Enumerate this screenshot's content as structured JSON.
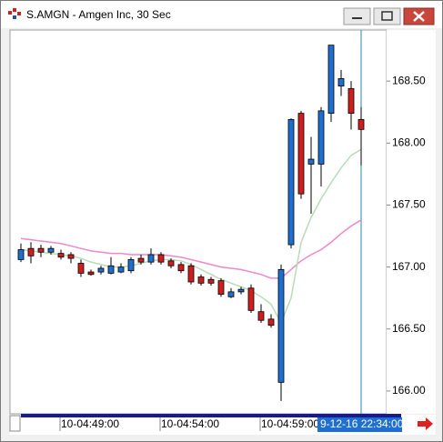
{
  "window": {
    "title": "S.AMGN - Amgen Inc, 30 Sec"
  },
  "chart_data": {
    "type": "candlestick",
    "categories": [
      null,
      null,
      null,
      null,
      "10-04:49:00",
      null,
      null,
      null,
      null,
      null,
      null,
      null,
      null,
      null,
      "10-04:54:00",
      null,
      null,
      null,
      null,
      null,
      null,
      null,
      null,
      null,
      "10-04:59:00",
      null,
      null,
      null,
      null,
      null,
      null,
      null,
      null,
      null,
      null
    ],
    "cursor_label": "9-12-16 22:34:00",
    "up_color": "#1e6fd0",
    "down_color": "#d01e1e",
    "open": [
      167.06,
      167.15,
      167.15,
      167.12,
      167.11,
      167.1,
      167.03,
      166.96,
      166.96,
      166.95,
      166.96,
      166.97,
      167.07,
      167.04,
      167.1,
      167.05,
      167.02,
      167.01,
      166.92,
      166.9,
      166.89,
      166.76,
      166.8,
      166.83,
      166.64,
      166.58,
      166.07,
      167.18,
      168.24,
      167.83,
      167.83,
      168.24,
      168.46,
      168.44,
      168.19
    ],
    "high": [
      167.19,
      167.2,
      167.18,
      167.17,
      167.14,
      167.12,
      167.06,
      166.98,
      167.01,
      167.08,
      167.03,
      167.08,
      167.1,
      167.15,
      167.12,
      167.07,
      167.04,
      167.03,
      166.94,
      166.92,
      166.91,
      166.83,
      166.84,
      166.86,
      166.7,
      166.62,
      167.02,
      168.2,
      168.26,
      168.05,
      168.29,
      168.79,
      168.59,
      168.5,
      168.29
    ],
    "low": [
      167.04,
      167.03,
      167.08,
      167.1,
      167.06,
      167.03,
      166.92,
      166.93,
      166.94,
      166.94,
      166.95,
      166.95,
      167.02,
      167.02,
      167.02,
      166.99,
      166.95,
      166.86,
      166.85,
      166.85,
      166.76,
      166.75,
      166.78,
      166.63,
      166.55,
      166.51,
      165.92,
      167.15,
      167.55,
      167.43,
      167.65,
      168.17,
      168.38,
      168.11,
      167.82
    ],
    "close": [
      167.14,
      167.09,
      167.12,
      167.15,
      167.08,
      167.07,
      166.95,
      166.94,
      166.99,
      167.01,
      167.0,
      167.06,
      167.04,
      167.1,
      167.04,
      167.01,
      166.97,
      166.88,
      166.87,
      166.87,
      166.78,
      166.8,
      166.82,
      166.65,
      166.57,
      166.53,
      166.98,
      168.19,
      167.59,
      167.87,
      168.26,
      168.79,
      168.52,
      168.24,
      168.11
    ],
    "overlays": [
      {
        "color": "#ee88c8",
        "values": [
          167.23,
          167.22,
          167.21,
          167.2,
          167.19,
          167.17,
          167.15,
          167.13,
          167.12,
          167.11,
          167.11,
          167.1,
          167.1,
          167.1,
          167.1,
          167.09,
          167.08,
          167.06,
          167.04,
          167.02,
          167.0,
          166.99,
          166.98,
          166.96,
          166.94,
          166.91,
          166.91,
          166.98,
          167.05,
          167.1,
          167.14,
          167.2,
          167.27,
          167.33,
          167.38
        ]
      },
      {
        "color": "#b8dcb8",
        "values": [
          167.14,
          167.13,
          167.12,
          167.11,
          167.1,
          167.09,
          167.07,
          167.04,
          167.02,
          167.0,
          167.0,
          167.01,
          167.03,
          167.05,
          167.06,
          167.06,
          167.05,
          167.02,
          166.98,
          166.94,
          166.9,
          166.87,
          166.84,
          166.81,
          166.76,
          166.7,
          166.55,
          166.75,
          167.2,
          167.4,
          167.55,
          167.68,
          167.8,
          167.9,
          167.95
        ]
      }
    ],
    "ylim": [
      165.816,
      168.912
    ],
    "yticks": [
      {
        "value": 166,
        "label": "166.00"
      },
      {
        "value": 166.5,
        "label": "166.50"
      },
      {
        "value": 167,
        "label": "167.00"
      },
      {
        "value": 167.5,
        "label": "167.50"
      },
      {
        "value": 168,
        "label": "168.00"
      },
      {
        "value": 168.5,
        "label": "168.50"
      }
    ]
  }
}
